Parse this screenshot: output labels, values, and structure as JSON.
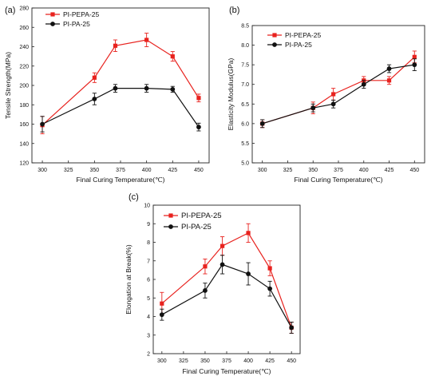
{
  "colors": {
    "series_a": "#e8221e",
    "series_b": "#111111",
    "axis": "#222222"
  },
  "chart_data": [
    {
      "panel": "(a)",
      "type": "line",
      "xlabel": "Final Curing Temperature(℃)",
      "ylabel": "Tensile Strength(MPa)",
      "xlim": [
        290,
        460
      ],
      "ylim": [
        120,
        280
      ],
      "xticks": [
        300,
        325,
        350,
        375,
        400,
        425,
        450
      ],
      "yticks": [
        120,
        140,
        160,
        180,
        200,
        220,
        240,
        260,
        280
      ],
      "legend_position": "top-left",
      "x": [
        300,
        350,
        370,
        400,
        425,
        450
      ],
      "series": [
        {
          "name": "PI-PEPA-25",
          "marker": "square",
          "color": "#e8221e",
          "values": [
            159,
            208,
            241,
            247,
            230,
            187
          ],
          "errors": [
            9,
            5,
            6,
            7,
            5,
            4
          ]
        },
        {
          "name": "PI-PA-25",
          "marker": "circle",
          "color": "#111111",
          "values": [
            160,
            186,
            197,
            197,
            196,
            157
          ],
          "errors": [
            8,
            6,
            4,
            4,
            3,
            4
          ]
        }
      ]
    },
    {
      "panel": "(b)",
      "type": "line",
      "xlabel": "Final Curing Temperature(℃)",
      "ylabel": "Elasticity Modulus(GPa)",
      "xlim": [
        290,
        460
      ],
      "ylim": [
        5.0,
        8.5
      ],
      "xticks": [
        300,
        325,
        350,
        375,
        400,
        425,
        450
      ],
      "yticks": [
        "5.0",
        "5.5",
        "6.0",
        "6.5",
        "7.0",
        "7.5",
        "8.0",
        "8.5"
      ],
      "legend_position": "top-left",
      "x": [
        300,
        350,
        370,
        400,
        425,
        450
      ],
      "series": [
        {
          "name": "PI-PEPA-25",
          "marker": "square",
          "color": "#e8221e",
          "values": [
            6.0,
            6.4,
            6.75,
            7.1,
            7.1,
            7.7
          ],
          "errors": [
            0.1,
            0.15,
            0.15,
            0.1,
            0.1,
            0.15
          ]
        },
        {
          "name": "PI-PA-25",
          "marker": "circle",
          "color": "#111111",
          "values": [
            6.0,
            6.4,
            6.5,
            7.0,
            7.4,
            7.5
          ],
          "errors": [
            0.1,
            0.1,
            0.1,
            0.1,
            0.1,
            0.15
          ]
        }
      ]
    },
    {
      "panel": "(c)",
      "type": "line",
      "xlabel": "Final Curing Temperature(℃)",
      "ylabel": "Elongation at Break(%)",
      "xlim": [
        290,
        460
      ],
      "ylim": [
        2,
        10
      ],
      "xticks": [
        300,
        325,
        350,
        375,
        400,
        425,
        450
      ],
      "yticks": [
        2,
        3,
        4,
        5,
        6,
        7,
        8,
        9,
        10
      ],
      "legend_position": "top-left",
      "x": [
        300,
        350,
        370,
        400,
        425,
        450
      ],
      "series": [
        {
          "name": "PI-PEPA-25",
          "marker": "square",
          "color": "#e8221e",
          "values": [
            4.7,
            6.7,
            7.8,
            8.5,
            6.6,
            3.4
          ],
          "errors": [
            0.6,
            0.4,
            0.5,
            0.5,
            0.4,
            0.3
          ]
        },
        {
          "name": "PI-PA-25",
          "marker": "circle",
          "color": "#111111",
          "values": [
            4.1,
            5.4,
            6.8,
            6.3,
            5.5,
            3.4
          ],
          "errors": [
            0.3,
            0.4,
            0.5,
            0.6,
            0.4,
            0.3
          ]
        }
      ]
    }
  ]
}
